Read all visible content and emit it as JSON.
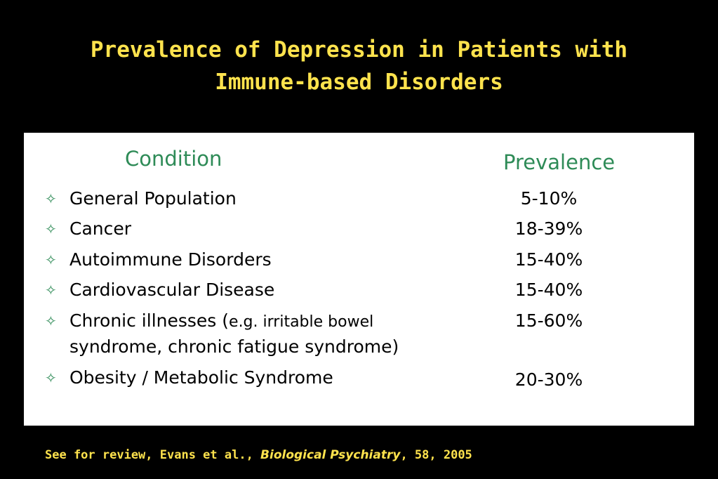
{
  "slide": {
    "title_line1": "Prevalence of Depression in Patients with",
    "title_line2": "Immune-based Disorders"
  },
  "table": {
    "header_condition": "Condition",
    "header_prevalence": "Prevalence",
    "bullet_glyph": "✧",
    "rows": [
      {
        "condition": "General Population",
        "prevalence": "5-10%"
      },
      {
        "condition": "Cancer",
        "prevalence": "18-39%"
      },
      {
        "condition": "Autoimmune Disorders",
        "prevalence": "15-40%"
      },
      {
        "condition": "Cardiovascular Disease",
        "prevalence": "15-40%"
      },
      {
        "condition": "Chronic illnesses (",
        "condition_detail": "e.g. irritable bowel",
        "condition_line2": "syndrome, chronic fatigue syndrome)",
        "prevalence": "15-60%"
      },
      {
        "condition": "Obesity / Metabolic Syndrome",
        "prevalence": "20-30%"
      }
    ]
  },
  "footer": {
    "prefix": "See for review, Evans et al., ",
    "journal": "Biological Psychiatry",
    "suffix": ", 58, 2005"
  },
  "colors": {
    "background": "#000000",
    "title": "#ffe34d",
    "header": "#2e8b57",
    "panel": "#ffffff"
  }
}
